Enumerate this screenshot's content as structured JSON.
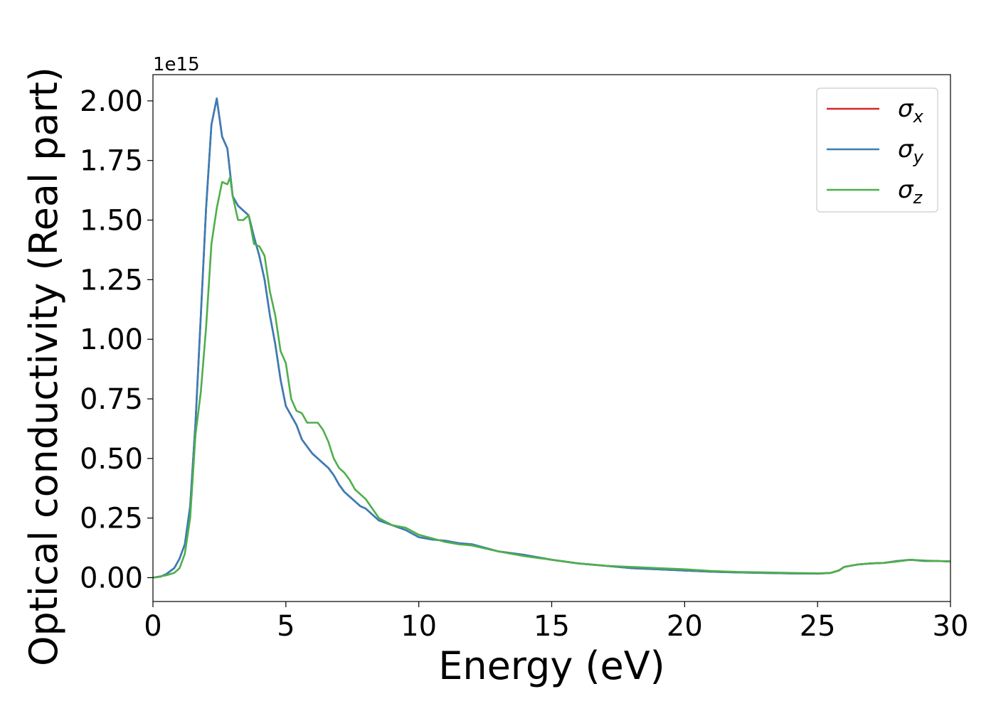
{
  "chart_data": {
    "type": "line",
    "title": "",
    "xlabel": "Energy (eV)",
    "ylabel": "Optical conductivity (Real part)",
    "y_offset_label": "1e15",
    "y_scale": 1000000000000000.0,
    "xlim": [
      0,
      30
    ],
    "ylim": [
      -0.1,
      2.11
    ],
    "x_ticks": [
      0,
      5,
      10,
      15,
      20,
      25,
      30
    ],
    "x_tick_labels": [
      "0",
      "5",
      "10",
      "15",
      "20",
      "25",
      "30"
    ],
    "y_ticks": [
      0.0,
      0.25,
      0.5,
      0.75,
      1.0,
      1.25,
      1.5,
      1.75,
      2.0
    ],
    "y_tick_labels": [
      "0.00",
      "0.25",
      "0.50",
      "0.75",
      "1.00",
      "1.25",
      "1.50",
      "1.75",
      "2.00"
    ],
    "grid": false,
    "legend_position": "top-right",
    "series": [
      {
        "name": "σx",
        "legend_symbol": "σ",
        "legend_subscript": "x",
        "color": "#d62728",
        "x": [
          0,
          0.3,
          0.5,
          0.8,
          1.0,
          1.2,
          1.4,
          1.6,
          1.8,
          2.0,
          2.2,
          2.4,
          2.6,
          2.8,
          3.0,
          3.2,
          3.4,
          3.6,
          3.8,
          4.0,
          4.2,
          4.4,
          4.6,
          4.8,
          5.0,
          5.2,
          5.4,
          5.6,
          5.8,
          6.0,
          6.2,
          6.4,
          6.6,
          6.8,
          7.0,
          7.2,
          7.4,
          7.6,
          7.8,
          8.0,
          8.5,
          9.0,
          9.5,
          10.0,
          10.5,
          11.0,
          11.5,
          12.0,
          13.0,
          14.0,
          15.0,
          16.0,
          17.0,
          18.0,
          19.0,
          20.0,
          21.0,
          22.0,
          23.0,
          24.0,
          25.0,
          25.5,
          25.8,
          26.0,
          26.5,
          27.0,
          27.5,
          28.0,
          28.5,
          29.0,
          29.5,
          30.0
        ],
        "y": [
          0,
          0.005,
          0.015,
          0.04,
          0.08,
          0.14,
          0.3,
          0.65,
          1.1,
          1.55,
          1.9,
          2.01,
          1.85,
          1.8,
          1.6,
          1.56,
          1.54,
          1.52,
          1.43,
          1.35,
          1.25,
          1.1,
          0.98,
          0.83,
          0.72,
          0.68,
          0.64,
          0.58,
          0.55,
          0.52,
          0.5,
          0.48,
          0.46,
          0.43,
          0.39,
          0.36,
          0.34,
          0.32,
          0.3,
          0.29,
          0.24,
          0.22,
          0.2,
          0.17,
          0.16,
          0.155,
          0.145,
          0.14,
          0.11,
          0.095,
          0.075,
          0.06,
          0.05,
          0.04,
          0.035,
          0.03,
          0.025,
          0.022,
          0.02,
          0.018,
          0.017,
          0.02,
          0.03,
          0.045,
          0.055,
          0.06,
          0.062,
          0.07,
          0.075,
          0.07,
          0.07,
          0.068
        ]
      },
      {
        "name": "σy",
        "legend_symbol": "σ",
        "legend_subscript": "y",
        "color": "#377eb8",
        "x": [
          0,
          0.3,
          0.5,
          0.8,
          1.0,
          1.2,
          1.4,
          1.6,
          1.8,
          2.0,
          2.2,
          2.4,
          2.6,
          2.8,
          3.0,
          3.2,
          3.4,
          3.6,
          3.8,
          4.0,
          4.2,
          4.4,
          4.6,
          4.8,
          5.0,
          5.2,
          5.4,
          5.6,
          5.8,
          6.0,
          6.2,
          6.4,
          6.6,
          6.8,
          7.0,
          7.2,
          7.4,
          7.6,
          7.8,
          8.0,
          8.5,
          9.0,
          9.5,
          10.0,
          10.5,
          11.0,
          11.5,
          12.0,
          13.0,
          14.0,
          15.0,
          16.0,
          17.0,
          18.0,
          19.0,
          20.0,
          21.0,
          22.0,
          23.0,
          24.0,
          25.0,
          25.5,
          25.8,
          26.0,
          26.5,
          27.0,
          27.5,
          28.0,
          28.5,
          29.0,
          29.5,
          30.0
        ],
        "y": [
          0,
          0.005,
          0.015,
          0.04,
          0.08,
          0.14,
          0.3,
          0.65,
          1.1,
          1.55,
          1.9,
          2.01,
          1.85,
          1.8,
          1.6,
          1.56,
          1.54,
          1.52,
          1.43,
          1.35,
          1.25,
          1.1,
          0.98,
          0.83,
          0.72,
          0.68,
          0.64,
          0.58,
          0.55,
          0.52,
          0.5,
          0.48,
          0.46,
          0.43,
          0.39,
          0.36,
          0.34,
          0.32,
          0.3,
          0.29,
          0.24,
          0.22,
          0.2,
          0.17,
          0.16,
          0.155,
          0.145,
          0.14,
          0.11,
          0.095,
          0.075,
          0.06,
          0.05,
          0.04,
          0.035,
          0.03,
          0.025,
          0.022,
          0.02,
          0.018,
          0.017,
          0.02,
          0.03,
          0.045,
          0.055,
          0.06,
          0.062,
          0.07,
          0.075,
          0.07,
          0.07,
          0.068
        ]
      },
      {
        "name": "σz",
        "legend_symbol": "σ",
        "legend_subscript": "z",
        "color": "#4daf4a",
        "x": [
          0,
          0.5,
          0.8,
          1.0,
          1.2,
          1.4,
          1.6,
          1.8,
          2.0,
          2.2,
          2.4,
          2.6,
          2.8,
          2.9,
          3.0,
          3.2,
          3.4,
          3.6,
          3.8,
          4.0,
          4.2,
          4.4,
          4.6,
          4.8,
          5.0,
          5.2,
          5.4,
          5.6,
          5.8,
          6.0,
          6.2,
          6.4,
          6.6,
          6.8,
          7.0,
          7.2,
          7.4,
          7.6,
          7.8,
          8.0,
          8.5,
          9.0,
          9.5,
          10.0,
          10.5,
          11.0,
          11.5,
          12.0,
          13.0,
          14.0,
          15.0,
          16.0,
          17.0,
          18.0,
          19.0,
          20.0,
          21.0,
          22.0,
          23.0,
          24.0,
          25.0,
          25.5,
          25.8,
          26.0,
          26.5,
          27.0,
          27.5,
          28.0,
          28.5,
          29.0,
          29.5,
          30.0
        ],
        "y": [
          0,
          0.01,
          0.02,
          0.04,
          0.1,
          0.25,
          0.6,
          0.78,
          1.05,
          1.4,
          1.55,
          1.66,
          1.65,
          1.68,
          1.6,
          1.5,
          1.5,
          1.52,
          1.4,
          1.39,
          1.35,
          1.2,
          1.1,
          0.95,
          0.9,
          0.75,
          0.7,
          0.69,
          0.65,
          0.65,
          0.65,
          0.62,
          0.57,
          0.5,
          0.46,
          0.44,
          0.41,
          0.37,
          0.35,
          0.33,
          0.25,
          0.22,
          0.21,
          0.18,
          0.165,
          0.15,
          0.14,
          0.135,
          0.11,
          0.09,
          0.075,
          0.06,
          0.05,
          0.045,
          0.04,
          0.035,
          0.028,
          0.024,
          0.022,
          0.02,
          0.018,
          0.02,
          0.03,
          0.045,
          0.055,
          0.06,
          0.062,
          0.068,
          0.075,
          0.072,
          0.07,
          0.068
        ]
      }
    ]
  }
}
